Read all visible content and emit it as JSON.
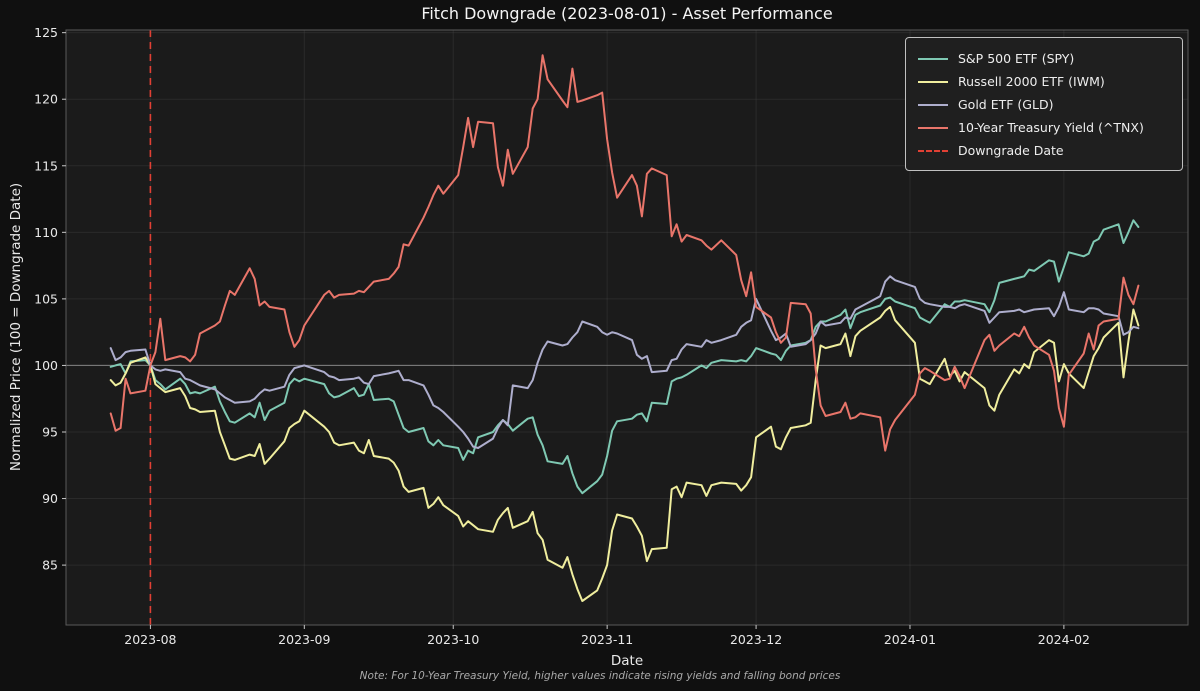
{
  "figure": {
    "title": "Fitch Downgrade (2023-08-01) - Asset Performance",
    "xlabel": "Date",
    "ylabel": "Normalized Price (100 = Downgrade Date)",
    "note": "Note: For 10-Year Treasury Yield, higher values indicate rising yields and falling bond prices"
  },
  "colors": {
    "background": "#101010",
    "axes_bg": "#1b1b1b",
    "grid": "#474747",
    "baseline_100": "#9a9a9a",
    "spine": "#5a5a5a",
    "tick_mark": "#c8c8c8",
    "tick_text": "#e9e9e9",
    "title_text": "#f5f5f5",
    "note_text": "#a9a9a9",
    "legend_bg": "#1f1f1f",
    "legend_border": "#c0c0c0"
  },
  "chart_data": {
    "type": "line",
    "title": "Fitch Downgrade (2023-08-01) - Asset Performance",
    "xlabel": "Date",
    "ylabel": "Normalized Price (100 = Downgrade Date)",
    "note": "Note: For 10-Year Treasury Yield, higher values indicate rising yields and falling bond prices",
    "grid": true,
    "legend_position": "upper right",
    "xlim": [
      "2023-07-15",
      "2024-02-26"
    ],
    "ylim": [
      80.5,
      125.2
    ],
    "y_ticks": [
      85,
      90,
      95,
      100,
      105,
      110,
      115,
      120,
      125
    ],
    "x_ticks": [
      {
        "label": "2023-08",
        "date": "2023-08-01"
      },
      {
        "label": "2023-09",
        "date": "2023-09-01"
      },
      {
        "label": "2023-10",
        "date": "2023-10-01"
      },
      {
        "label": "2023-11",
        "date": "2023-11-01"
      },
      {
        "label": "2023-12",
        "date": "2023-12-01"
      },
      {
        "label": "2024-01",
        "date": "2024-01-01"
      },
      {
        "label": "2024-02",
        "date": "2024-02-01"
      }
    ],
    "annotations": [
      {
        "type": "vline",
        "date": "2023-08-01",
        "label": "Downgrade Date",
        "style": "dashed",
        "color": "#e14034"
      },
      {
        "type": "hline",
        "y": 100,
        "style": "solid",
        "color": "#9a9a9a"
      }
    ],
    "dates": [
      "2023-07-24",
      "2023-07-25",
      "2023-07-26",
      "2023-07-27",
      "2023-07-28",
      "2023-07-31",
      "2023-08-01",
      "2023-08-02",
      "2023-08-03",
      "2023-08-04",
      "2023-08-07",
      "2023-08-08",
      "2023-08-09",
      "2023-08-10",
      "2023-08-11",
      "2023-08-14",
      "2023-08-15",
      "2023-08-16",
      "2023-08-17",
      "2023-08-18",
      "2023-08-21",
      "2023-08-22",
      "2023-08-23",
      "2023-08-24",
      "2023-08-25",
      "2023-08-28",
      "2023-08-29",
      "2023-08-30",
      "2023-08-31",
      "2023-09-01",
      "2023-09-05",
      "2023-09-06",
      "2023-09-07",
      "2023-09-08",
      "2023-09-11",
      "2023-09-12",
      "2023-09-13",
      "2023-09-14",
      "2023-09-15",
      "2023-09-18",
      "2023-09-19",
      "2023-09-20",
      "2023-09-21",
      "2023-09-22",
      "2023-09-25",
      "2023-09-26",
      "2023-09-27",
      "2023-09-28",
      "2023-09-29",
      "2023-10-02",
      "2023-10-03",
      "2023-10-04",
      "2023-10-05",
      "2023-10-06",
      "2023-10-09",
      "2023-10-10",
      "2023-10-11",
      "2023-10-12",
      "2023-10-13",
      "2023-10-16",
      "2023-10-17",
      "2023-10-18",
      "2023-10-19",
      "2023-10-20",
      "2023-10-23",
      "2023-10-24",
      "2023-10-25",
      "2023-10-26",
      "2023-10-27",
      "2023-10-30",
      "2023-10-31",
      "2023-11-01",
      "2023-11-02",
      "2023-11-03",
      "2023-11-06",
      "2023-11-07",
      "2023-11-08",
      "2023-11-09",
      "2023-11-10",
      "2023-11-13",
      "2023-11-14",
      "2023-11-15",
      "2023-11-16",
      "2023-11-17",
      "2023-11-20",
      "2023-11-21",
      "2023-11-22",
      "2023-11-24",
      "2023-11-27",
      "2023-11-28",
      "2023-11-29",
      "2023-11-30",
      "2023-12-01",
      "2023-12-04",
      "2023-12-05",
      "2023-12-06",
      "2023-12-07",
      "2023-12-08",
      "2023-12-11",
      "2023-12-12",
      "2023-12-13",
      "2023-12-14",
      "2023-12-15",
      "2023-12-18",
      "2023-12-19",
      "2023-12-20",
      "2023-12-21",
      "2023-12-22",
      "2023-12-26",
      "2023-12-27",
      "2023-12-28",
      "2023-12-29",
      "2024-01-02",
      "2024-01-03",
      "2024-01-04",
      "2024-01-05",
      "2024-01-08",
      "2024-01-09",
      "2024-01-10",
      "2024-01-11",
      "2024-01-12",
      "2024-01-16",
      "2024-01-17",
      "2024-01-18",
      "2024-01-19",
      "2024-01-22",
      "2024-01-23",
      "2024-01-24",
      "2024-01-25",
      "2024-01-26",
      "2024-01-29",
      "2024-01-30",
      "2024-01-31",
      "2024-02-01",
      "2024-02-02",
      "2024-02-05",
      "2024-02-06",
      "2024-02-07",
      "2024-02-08",
      "2024-02-09",
      "2024-02-12",
      "2024-02-13",
      "2024-02-14",
      "2024-02-15",
      "2024-02-16"
    ],
    "series": [
      {
        "name": "S&P 500 ETF (SPY)",
        "color": "#7fc9b3",
        "values": [
          99.9,
          100.0,
          100.1,
          99.4,
          100.3,
          100.4,
          100.0,
          98.9,
          98.6,
          98.2,
          99.0,
          98.6,
          97.9,
          98.0,
          97.9,
          98.4,
          97.3,
          96.5,
          95.8,
          95.7,
          96.4,
          96.1,
          97.2,
          95.9,
          96.6,
          97.2,
          98.6,
          99.0,
          98.8,
          99.0,
          98.6,
          97.9,
          97.6,
          97.7,
          98.3,
          97.7,
          97.8,
          98.6,
          97.4,
          97.5,
          97.3,
          96.3,
          95.3,
          95.0,
          95.3,
          94.3,
          94.0,
          94.4,
          94.0,
          93.8,
          92.9,
          93.6,
          93.4,
          94.6,
          95.0,
          95.5,
          95.9,
          95.6,
          95.1,
          96.0,
          96.1,
          94.8,
          94.0,
          92.8,
          92.6,
          93.2,
          91.9,
          90.9,
          90.4,
          91.3,
          91.8,
          93.2,
          95.1,
          95.8,
          96.0,
          96.3,
          96.4,
          95.8,
          97.2,
          97.1,
          98.8,
          99.0,
          99.1,
          99.3,
          100.0,
          99.8,
          100.2,
          100.4,
          100.3,
          100.4,
          100.3,
          100.7,
          101.3,
          100.9,
          100.8,
          100.4,
          101.1,
          101.5,
          101.7,
          101.9,
          102.9,
          103.3,
          103.3,
          103.8,
          104.2,
          102.8,
          103.8,
          104.0,
          104.5,
          105.0,
          105.1,
          104.8,
          104.3,
          103.6,
          103.4,
          103.2,
          104.6,
          104.4,
          104.8,
          104.8,
          104.9,
          104.6,
          104.0,
          104.9,
          106.2,
          106.5,
          106.6,
          106.7,
          107.2,
          107.1,
          107.9,
          107.8,
          106.3,
          107.4,
          108.5,
          108.2,
          108.4,
          109.3,
          109.5,
          110.2,
          110.6,
          109.2,
          110.0,
          110.9,
          110.4
        ]
      },
      {
        "name": "Russell 2000 ETF (IWM)",
        "color": "#f0ee9e",
        "values": [
          98.9,
          98.5,
          98.7,
          99.4,
          100.2,
          100.6,
          100.0,
          98.6,
          98.3,
          98.0,
          98.3,
          97.7,
          96.8,
          96.7,
          96.5,
          96.6,
          95.0,
          94.0,
          93.0,
          92.9,
          93.3,
          93.2,
          94.1,
          92.6,
          93.0,
          94.3,
          95.3,
          95.6,
          95.8,
          96.6,
          95.4,
          95.0,
          94.2,
          94.0,
          94.2,
          93.6,
          93.4,
          94.4,
          93.2,
          93.0,
          92.7,
          92.1,
          90.9,
          90.5,
          90.8,
          89.3,
          89.6,
          90.1,
          89.5,
          88.7,
          87.9,
          88.3,
          88.0,
          87.7,
          87.5,
          88.4,
          88.9,
          89.3,
          87.8,
          88.3,
          89.0,
          87.4,
          86.9,
          85.4,
          84.8,
          85.6,
          84.3,
          83.2,
          82.3,
          83.1,
          84.0,
          85.0,
          87.6,
          88.8,
          88.5,
          87.9,
          87.2,
          85.3,
          86.2,
          86.3,
          90.7,
          90.9,
          90.1,
          91.2,
          91.0,
          90.2,
          91.0,
          91.2,
          91.1,
          90.6,
          91.0,
          91.6,
          94.6,
          95.4,
          93.9,
          93.7,
          94.6,
          95.3,
          95.5,
          95.7,
          98.9,
          101.5,
          101.3,
          101.6,
          102.4,
          100.7,
          102.2,
          102.6,
          103.6,
          104.1,
          104.4,
          103.4,
          101.7,
          99.0,
          98.8,
          98.6,
          100.5,
          99.2,
          99.6,
          98.8,
          99.5,
          98.3,
          97.0,
          96.6,
          97.8,
          99.7,
          99.4,
          100.1,
          99.8,
          101.0,
          101.9,
          101.7,
          98.8,
          100.1,
          99.4,
          98.3,
          99.5,
          100.7,
          101.3,
          102.1,
          103.2,
          99.1,
          101.8,
          104.2,
          103.0
        ]
      },
      {
        "name": "Gold ETF (GLD)",
        "color": "#aeaecd",
        "values": [
          101.3,
          100.4,
          100.6,
          101.0,
          101.1,
          101.2,
          100.0,
          99.7,
          99.6,
          99.7,
          99.5,
          99.0,
          98.9,
          98.7,
          98.5,
          98.2,
          97.9,
          97.6,
          97.4,
          97.2,
          97.3,
          97.5,
          97.9,
          98.2,
          98.1,
          98.4,
          99.3,
          99.8,
          99.9,
          100.0,
          99.5,
          99.2,
          99.1,
          98.9,
          99.0,
          99.1,
          98.7,
          98.6,
          99.2,
          99.4,
          99.5,
          99.6,
          98.9,
          98.9,
          98.5,
          97.8,
          97.0,
          96.8,
          96.5,
          95.4,
          95.0,
          94.5,
          93.9,
          93.8,
          94.5,
          95.3,
          95.9,
          95.5,
          98.5,
          98.3,
          98.9,
          100.2,
          101.2,
          101.8,
          101.5,
          101.6,
          102.1,
          102.5,
          103.3,
          102.9,
          102.5,
          102.3,
          102.5,
          102.4,
          101.9,
          100.8,
          100.5,
          100.7,
          99.5,
          99.6,
          100.4,
          100.5,
          101.2,
          101.6,
          101.4,
          101.9,
          101.7,
          101.9,
          102.3,
          102.9,
          103.2,
          103.4,
          105.0,
          102.6,
          101.9,
          102.1,
          102.4,
          101.4,
          101.6,
          101.9,
          102.4,
          103.3,
          103.0,
          103.2,
          103.6,
          103.5,
          104.2,
          104.4,
          105.2,
          106.3,
          106.7,
          106.4,
          105.9,
          105.0,
          104.7,
          104.6,
          104.4,
          104.4,
          104.3,
          104.5,
          104.6,
          104.1,
          103.2,
          103.6,
          104.0,
          104.1,
          104.2,
          104.0,
          104.1,
          104.2,
          104.3,
          103.7,
          104.4,
          105.5,
          104.2,
          104.0,
          104.3,
          104.3,
          104.2,
          103.9,
          103.7,
          102.3,
          102.5,
          102.9,
          102.8
        ]
      },
      {
        "name": "10-Year Treasury Yield (^TNX)",
        "color": "#e9756a",
        "values": [
          96.4,
          95.1,
          95.3,
          99.0,
          97.9,
          98.1,
          100.0,
          101.0,
          103.5,
          100.4,
          100.7,
          100.6,
          100.3,
          100.8,
          102.4,
          103.0,
          103.3,
          104.5,
          105.6,
          105.3,
          107.3,
          106.5,
          104.5,
          104.8,
          104.4,
          104.2,
          102.5,
          101.4,
          101.9,
          103.0,
          105.3,
          105.6,
          105.1,
          105.3,
          105.4,
          105.6,
          105.5,
          105.9,
          106.3,
          106.5,
          106.9,
          107.4,
          109.1,
          109.0,
          111.1,
          111.9,
          112.8,
          113.5,
          112.9,
          114.3,
          116.4,
          118.6,
          116.4,
          118.3,
          118.2,
          114.9,
          113.5,
          116.2,
          114.4,
          116.4,
          119.3,
          120.0,
          123.3,
          121.5,
          119.9,
          119.4,
          122.3,
          119.8,
          119.9,
          120.3,
          120.5,
          117.0,
          114.5,
          112.6,
          114.3,
          113.5,
          111.2,
          114.4,
          114.8,
          114.3,
          109.7,
          110.6,
          109.3,
          109.8,
          109.4,
          109.0,
          108.7,
          109.4,
          108.3,
          106.4,
          105.2,
          107.0,
          104.4,
          103.6,
          102.5,
          101.7,
          102.1,
          104.7,
          104.6,
          103.9,
          99.7,
          97.0,
          96.2,
          96.5,
          97.2,
          96.0,
          96.1,
          96.4,
          96.1,
          93.6,
          95.2,
          95.9,
          97.8,
          99.4,
          99.8,
          99.6,
          98.9,
          99.0,
          99.9,
          99.2,
          98.3,
          101.9,
          102.3,
          101.1,
          101.5,
          102.4,
          102.2,
          102.9,
          102.1,
          101.5,
          100.8,
          99.6,
          96.8,
          95.4,
          99.3,
          100.9,
          102.4,
          101.2,
          103.0,
          103.3,
          103.5,
          106.6,
          105.3,
          104.6,
          106.0
        ]
      }
    ]
  }
}
